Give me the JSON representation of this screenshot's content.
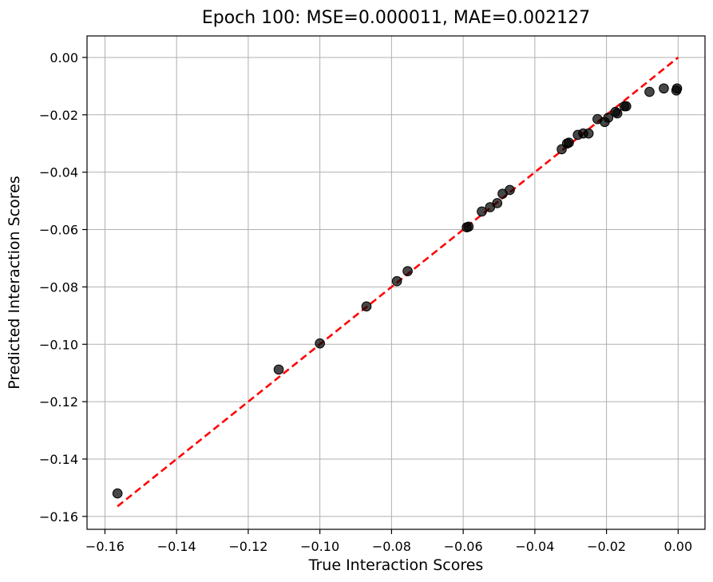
{
  "chart_data": {
    "type": "scatter",
    "title": "Epoch 100: MSE=0.000011, MAE=0.002127",
    "xlabel": "True Interaction Scores",
    "ylabel": "Predicted Interaction Scores",
    "xlim": [
      -0.165,
      0.0075
    ],
    "ylim": [
      -0.1645,
      0.0075
    ],
    "xticks": [
      -0.16,
      -0.14,
      -0.12,
      -0.1,
      -0.08,
      -0.06,
      -0.04,
      -0.02,
      0.0
    ],
    "xtick_labels": [
      "−0.16",
      "−0.14",
      "−0.12",
      "−0.10",
      "−0.08",
      "−0.06",
      "−0.04",
      "−0.02",
      "0.00"
    ],
    "yticks": [
      0.0,
      -0.02,
      -0.04,
      -0.06,
      -0.08,
      -0.1,
      -0.12,
      -0.14,
      -0.16
    ],
    "ytick_labels": [
      "0.00",
      "−0.02",
      "−0.04",
      "−0.06",
      "−0.08",
      "−0.10",
      "−0.12",
      "−0.14",
      "−0.16"
    ],
    "grid": true,
    "point_color": "#000000",
    "line_color": "#ff0000",
    "reference_line": {
      "x": [
        -0.1565,
        0.0
      ],
      "y": [
        -0.1565,
        0.0
      ],
      "style": "dashed"
    },
    "points": [
      {
        "x": -0.1565,
        "y": -0.152
      },
      {
        "x": -0.1115,
        "y": -0.1088
      },
      {
        "x": -0.1,
        "y": -0.0997
      },
      {
        "x": -0.087,
        "y": -0.0868
      },
      {
        "x": -0.0785,
        "y": -0.078
      },
      {
        "x": -0.0755,
        "y": -0.0745
      },
      {
        "x": -0.059,
        "y": -0.0592
      },
      {
        "x": -0.0585,
        "y": -0.059
      },
      {
        "x": -0.0548,
        "y": -0.0537
      },
      {
        "x": -0.0525,
        "y": -0.0522
      },
      {
        "x": -0.0505,
        "y": -0.0508
      },
      {
        "x": -0.049,
        "y": -0.0475
      },
      {
        "x": -0.047,
        "y": -0.0462
      },
      {
        "x": -0.0325,
        "y": -0.032
      },
      {
        "x": -0.031,
        "y": -0.03
      },
      {
        "x": -0.0305,
        "y": -0.0297
      },
      {
        "x": -0.028,
        "y": -0.027
      },
      {
        "x": -0.0265,
        "y": -0.0265
      },
      {
        "x": -0.025,
        "y": -0.0265
      },
      {
        "x": -0.0225,
        "y": -0.0215
      },
      {
        "x": -0.0205,
        "y": -0.0225
      },
      {
        "x": -0.0195,
        "y": -0.021
      },
      {
        "x": -0.0175,
        "y": -0.019
      },
      {
        "x": -0.017,
        "y": -0.0195
      },
      {
        "x": -0.015,
        "y": -0.017
      },
      {
        "x": -0.0145,
        "y": -0.017
      },
      {
        "x": -0.008,
        "y": -0.012
      },
      {
        "x": -0.004,
        "y": -0.0108
      },
      {
        "x": -0.0005,
        "y": -0.0115
      },
      {
        "x": -0.0003,
        "y": -0.0108
      }
    ]
  }
}
